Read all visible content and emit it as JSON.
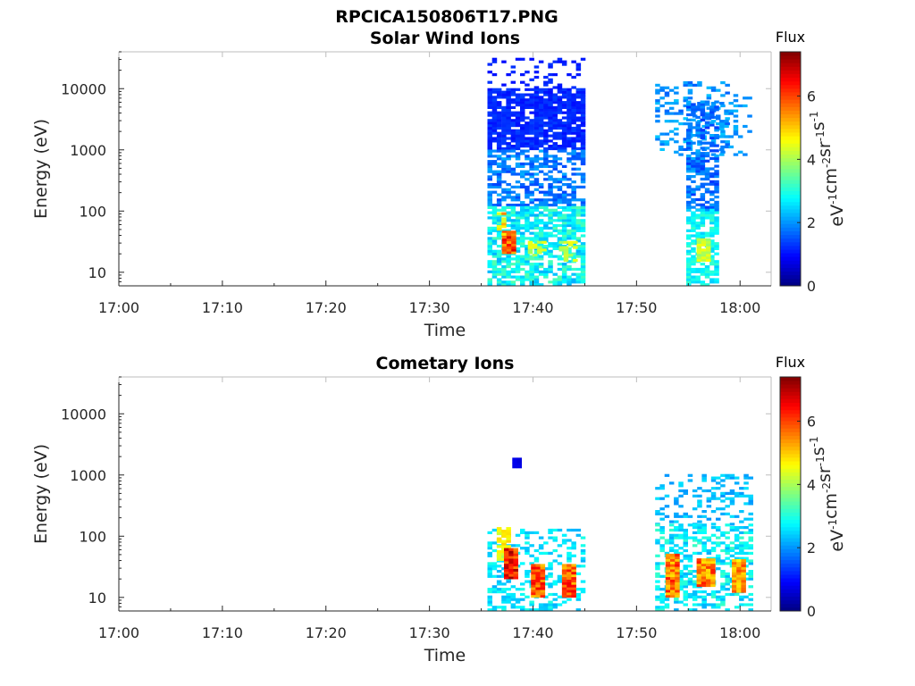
{
  "figure_title": "RPCICA150806T17.PNG",
  "colormap": "jet",
  "chart_data": [
    {
      "type": "heatmap",
      "title": "Solar Wind Ions",
      "xlabel": "Time",
      "ylabel": "Energy (eV)",
      "x_ticks": [
        "17:00",
        "17:10",
        "17:20",
        "17:30",
        "17:40",
        "17:50",
        "18:00"
      ],
      "x_range": [
        "17:00",
        "18:03"
      ],
      "y_scale": "log",
      "y_ticks": [
        "10",
        "100",
        "1000",
        "10000"
      ],
      "y_range": [
        6,
        40000
      ],
      "colorbar": {
        "label": "Flux",
        "unit": "eV-1cm-2sr-1s-1",
        "ticks": [
          "0",
          "2",
          "4",
          "6"
        ],
        "range": [
          0,
          7.4
        ]
      },
      "blobs": [
        {
          "t": [
            35.6,
            45.0
          ],
          "e": [
            1000,
            10000
          ],
          "v": [
            1.0,
            1.4
          ],
          "d": 0.85
        },
        {
          "t": [
            35.6,
            45.0
          ],
          "e": [
            10000,
            30000
          ],
          "v": [
            1.0,
            1.3
          ],
          "d": 0.2
        },
        {
          "t": [
            35.6,
            45.0
          ],
          "e": [
            120,
            1000
          ],
          "v": [
            1.4,
            2.2
          ],
          "d": 0.55
        },
        {
          "t": [
            35.6,
            45.0
          ],
          "e": [
            6,
            120
          ],
          "v": [
            2.2,
            3.4
          ],
          "d": 0.7
        },
        {
          "t": [
            37.0,
            38.3
          ],
          "e": [
            20,
            45
          ],
          "v": [
            5.2,
            6.8
          ],
          "d": 1.0
        },
        {
          "t": [
            36.5,
            37.3
          ],
          "e": [
            40,
            90
          ],
          "v": [
            4.2,
            5.5
          ],
          "d": 0.7
        },
        {
          "t": [
            39.5,
            41.0
          ],
          "e": [
            15,
            30
          ],
          "v": [
            3.8,
            4.6
          ],
          "d": 0.5
        },
        {
          "t": [
            42.5,
            44.0
          ],
          "e": [
            15,
            30
          ],
          "v": [
            3.8,
            4.6
          ],
          "d": 0.5
        },
        {
          "t": [
            51.8,
            58.7
          ],
          "e": [
            800,
            12000
          ],
          "v": [
            1.6,
            2.4
          ],
          "d": 0.3
        },
        {
          "t": [
            54.8,
            57.8
          ],
          "e": [
            100,
            6000
          ],
          "v": [
            1.3,
            2.2
          ],
          "d": 0.6
        },
        {
          "t": [
            54.8,
            57.8
          ],
          "e": [
            6,
            100
          ],
          "v": [
            2.4,
            3.2
          ],
          "d": 0.7
        },
        {
          "t": [
            55.8,
            56.8
          ],
          "e": [
            15,
            35
          ],
          "v": [
            3.8,
            4.6
          ],
          "d": 0.8
        },
        {
          "t": [
            58.0,
            61.0
          ],
          "e": [
            800,
            8000
          ],
          "v": [
            1.8,
            2.3
          ],
          "d": 0.2
        }
      ]
    },
    {
      "type": "heatmap",
      "title": "Cometary Ions",
      "xlabel": "Time",
      "ylabel": "Energy (eV)",
      "x_ticks": [
        "17:00",
        "17:10",
        "17:20",
        "17:30",
        "17:40",
        "17:50",
        "18:00"
      ],
      "x_range": [
        "17:00",
        "18:03"
      ],
      "y_scale": "log",
      "y_ticks": [
        "10",
        "100",
        "1000",
        "10000"
      ],
      "y_range": [
        6,
        40000
      ],
      "colorbar": {
        "label": "Flux",
        "unit": "eV-1cm-2sr-1s-1",
        "ticks": [
          "0",
          "2",
          "4",
          "6"
        ],
        "range": [
          0,
          7.4
        ]
      },
      "blobs": [
        {
          "t": [
            35.6,
            45.0
          ],
          "e": [
            6,
            130
          ],
          "v": [
            2.2,
            3.0
          ],
          "d": 0.35
        },
        {
          "t": [
            36.5,
            37.5
          ],
          "e": [
            40,
            130
          ],
          "v": [
            4.0,
            5.0
          ],
          "d": 0.8
        },
        {
          "t": [
            37.2,
            38.5
          ],
          "e": [
            20,
            60
          ],
          "v": [
            5.5,
            7.2
          ],
          "d": 1.0
        },
        {
          "t": [
            39.8,
            41.0
          ],
          "e": [
            10,
            35
          ],
          "v": [
            5.0,
            6.6
          ],
          "d": 1.0
        },
        {
          "t": [
            42.8,
            44.0
          ],
          "e": [
            10,
            35
          ],
          "v": [
            5.0,
            6.6
          ],
          "d": 1.0
        },
        {
          "t": [
            51.8,
            61.0
          ],
          "e": [
            150,
            1000
          ],
          "v": [
            2.0,
            2.6
          ],
          "d": 0.25
        },
        {
          "t": [
            51.8,
            61.0
          ],
          "e": [
            6,
            150
          ],
          "v": [
            2.2,
            3.2
          ],
          "d": 0.5
        },
        {
          "t": [
            52.8,
            54.0
          ],
          "e": [
            10,
            50
          ],
          "v": [
            4.8,
            6.4
          ],
          "d": 1.0
        },
        {
          "t": [
            55.8,
            57.2
          ],
          "e": [
            15,
            40
          ],
          "v": [
            4.8,
            6.4
          ],
          "d": 1.0
        },
        {
          "t": [
            59.2,
            60.5
          ],
          "e": [
            12,
            40
          ],
          "v": [
            4.6,
            6.0
          ],
          "d": 1.0
        },
        {
          "t": [
            38.0,
            38.5
          ],
          "e": [
            1300,
            1800
          ],
          "v": [
            0.6,
            0.8
          ],
          "d": 1.0
        }
      ]
    }
  ]
}
